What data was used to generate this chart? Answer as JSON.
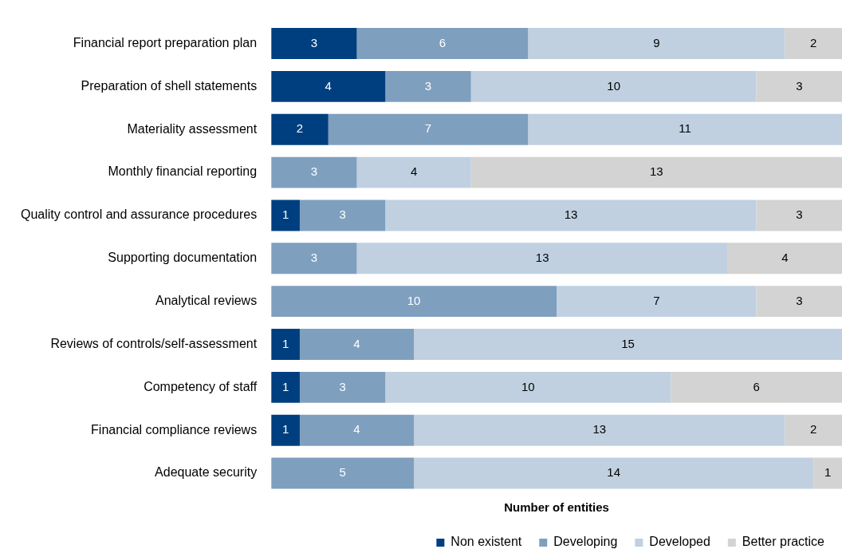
{
  "chart_data": {
    "type": "bar",
    "orientation": "horizontal",
    "stacked": true,
    "data_labels": true,
    "grid": false,
    "legend": "bottom",
    "xlabel": "Number of entities",
    "categories": [
      "Financial report preparation plan",
      "Preparation of shell statements",
      "Materiality assessment",
      "Monthly financial reporting",
      "Quality control and assurance procedures",
      "Supporting documentation",
      "Analytical reviews",
      "Reviews of controls/self-assessment",
      "Competency of staff",
      "Financial compliance reviews",
      "Adequate security"
    ],
    "series": [
      {
        "name": "Non existent",
        "color": "#003f7f",
        "values": [
          3,
          4,
          2,
          null,
          1,
          null,
          null,
          1,
          1,
          1,
          null
        ]
      },
      {
        "name": "Developing",
        "color": "#7f9fbf",
        "values": [
          6,
          3,
          7,
          3,
          3,
          3,
          10,
          4,
          3,
          4,
          5
        ]
      },
      {
        "name": "Developed",
        "color": "#c0d0e0",
        "values": [
          9,
          10,
          11,
          4,
          13,
          13,
          7,
          15,
          10,
          13,
          14
        ]
      },
      {
        "name": "Better practice",
        "color": "#d3d3d3",
        "values": [
          2,
          3,
          null,
          13,
          3,
          4,
          3,
          null,
          6,
          2,
          1
        ]
      }
    ]
  }
}
